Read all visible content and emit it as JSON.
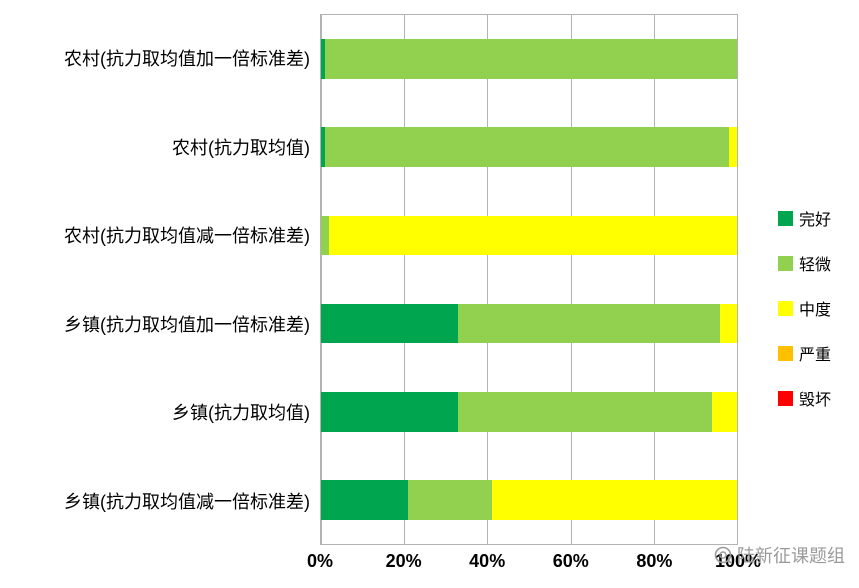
{
  "chart_data": {
    "type": "bar",
    "orientation": "horizontal",
    "stacked": true,
    "stack_mode": "percent",
    "title": "",
    "xlabel": "",
    "ylabel": "",
    "xlim": [
      0,
      100
    ],
    "grid": true,
    "legend_position": "right",
    "x_ticks": [
      "0%",
      "20%",
      "40%",
      "60%",
      "80%",
      "100%"
    ],
    "categories": [
      "农村(抗力取均值加一倍标准差)",
      "农村(抗力取均值)",
      "农村(抗力取均值减一倍标准差)",
      "乡镇(抗力取均值加一倍标准差)",
      "乡镇(抗力取均值)",
      "乡镇(抗力取均值减一倍标准差)"
    ],
    "series": [
      {
        "name": "完好",
        "color": "#00A550",
        "values": [
          1,
          1,
          0,
          33,
          33,
          21
        ]
      },
      {
        "name": "轻微",
        "color": "#92D050",
        "values": [
          99,
          97,
          2,
          63,
          61,
          20
        ]
      },
      {
        "name": "中度",
        "color": "#FFFF00",
        "values": [
          0,
          2,
          98,
          4,
          6,
          59
        ]
      },
      {
        "name": "严重",
        "color": "#FFC000",
        "values": [
          0,
          0,
          0,
          0,
          0,
          0
        ]
      },
      {
        "name": "毁坏",
        "color": "#FF0000",
        "values": [
          0,
          0,
          0,
          0,
          0,
          0
        ]
      }
    ]
  },
  "watermark": {
    "text": "陆新征课题组"
  }
}
